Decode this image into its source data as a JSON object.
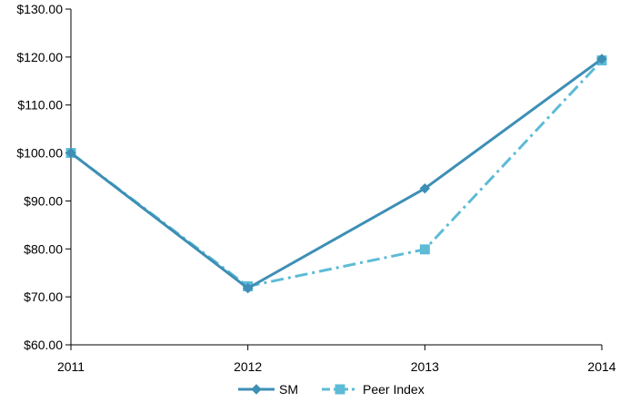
{
  "chart_data": {
    "type": "line",
    "categories": [
      "2011",
      "2012",
      "2013",
      "2014"
    ],
    "ylim": [
      60,
      130
    ],
    "yticks": [
      60,
      70,
      80,
      90,
      100,
      110,
      120,
      130
    ],
    "ytick_labels": [
      "$60.00",
      "$70.00",
      "$80.00",
      "$90.00",
      "$100.00",
      "$110.00",
      "$120.00",
      "$130.00"
    ],
    "grid": false,
    "legend_position": "bottom",
    "series": [
      {
        "name": "SM",
        "values": [
          100,
          71.8,
          92.6,
          119.6
        ],
        "color": "#3d8fb5",
        "line_style": "solid",
        "marker": "diamond"
      },
      {
        "name": "Peer Index",
        "values": [
          100,
          72.2,
          79.9,
          119.3
        ],
        "color": "#5dbbd6",
        "line_style": "dash-dot",
        "marker": "square"
      }
    ]
  }
}
